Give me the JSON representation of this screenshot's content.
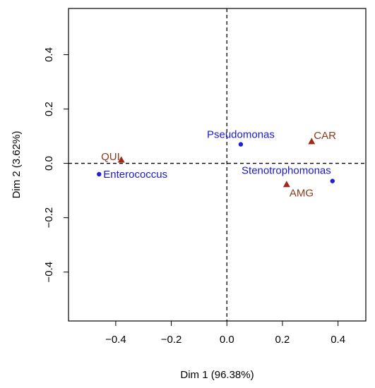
{
  "chart_data": {
    "type": "scatter",
    "title": "",
    "xlabel": "Dim 1 (96.38%)",
    "ylabel": "Dim 2 (3.62%)",
    "xlim": [
      -0.57,
      0.5
    ],
    "ylim": [
      -0.58,
      0.57
    ],
    "xticks": [
      -0.4,
      -0.2,
      0.0,
      0.2,
      0.4
    ],
    "yticks": [
      -0.4,
      -0.2,
      0.0,
      0.2,
      0.4
    ],
    "xtick_labels": [
      "−0.4",
      "−0.2",
      "0.0",
      "0.2",
      "0.4"
    ],
    "ytick_labels": [
      "−0.4",
      "−0.2",
      "0.0",
      "0.2",
      "0.4"
    ],
    "grid": false,
    "reference_lines": {
      "x": 0,
      "y": 0,
      "style": "dashed"
    },
    "series": [
      {
        "name": "",
        "marker": "circle",
        "color": "#1f1fd6",
        "label_color": "#1a1acc",
        "points": [
          {
            "label": "Pseudomonas",
            "x": 0.05,
            "y": 0.07
          },
          {
            "label": "Enterococcus",
            "x": -0.46,
            "y": -0.04
          },
          {
            "label": "Stenotrophomonas",
            "x": 0.38,
            "y": -0.065
          }
        ]
      },
      {
        "name": "",
        "marker": "triangle",
        "color": "#a02818",
        "label_color": "#8b3a1a",
        "points": [
          {
            "label": "CAR",
            "x": 0.305,
            "y": 0.08
          },
          {
            "label": "QUI",
            "x": -0.38,
            "y": 0.012
          },
          {
            "label": "AMG",
            "x": 0.215,
            "y": -0.078
          }
        ]
      }
    ]
  }
}
